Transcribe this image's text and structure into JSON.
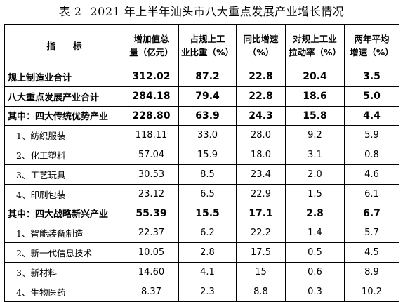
{
  "title": {
    "label": "表 2",
    "text": "2021 年上半年汕头市八大重点发展产业增长情况"
  },
  "table": {
    "headers": [
      {
        "line1": "指　　标",
        "line2": ""
      },
      {
        "line1": "增加值总",
        "line2": "量（亿元）"
      },
      {
        "line1": "占规上工",
        "line2": "业比重（%）"
      },
      {
        "line1": "同比增速",
        "line2": "（%）"
      },
      {
        "line1": "对规上工业",
        "line2": "拉动率（%）"
      },
      {
        "line1": "两年平均",
        "line2": "增速（%）"
      }
    ],
    "rows": [
      {
        "label": "规上制造业合计",
        "value_added": "312.02",
        "share": "87.2",
        "yoy_growth": "22.8",
        "pull_rate": "20.4",
        "two_year_avg": "3.5"
      },
      {
        "label": "八大重点发展产业合计",
        "value_added": "284.18",
        "share": "79.4",
        "yoy_growth": "22.8",
        "pull_rate": "18.6",
        "two_year_avg": "5.0"
      },
      {
        "label": "其中：四大传统优势产业",
        "value_added": "228.80",
        "share": "63.9",
        "yoy_growth": "24.3",
        "pull_rate": "15.8",
        "two_year_avg": "4.4"
      },
      {
        "label": "1、纺织服装",
        "value_added": "118.11",
        "share": "33.0",
        "yoy_growth": "28.0",
        "pull_rate": "9.2",
        "two_year_avg": "5.9"
      },
      {
        "label": "2、化工塑料",
        "value_added": "57.04",
        "share": "15.9",
        "yoy_growth": "18.0",
        "pull_rate": "3.1",
        "two_year_avg": "0.8"
      },
      {
        "label": "3、工艺玩具",
        "value_added": "30.53",
        "share": "8.5",
        "yoy_growth": "23.4",
        "pull_rate": "2.0",
        "two_year_avg": "4.6"
      },
      {
        "label": "4、印刷包装",
        "value_added": "23.12",
        "share": "6.5",
        "yoy_growth": "22.9",
        "pull_rate": "1.5",
        "two_year_avg": "6.1"
      },
      {
        "label": "其中：四大战略新兴产业",
        "value_added": "55.39",
        "share": "15.5",
        "yoy_growth": "17.1",
        "pull_rate": "2.8",
        "two_year_avg": "6.7"
      },
      {
        "label": "1、智能装备制造",
        "value_added": "22.37",
        "share": "6.2",
        "yoy_growth": "22.2",
        "pull_rate": "1.4",
        "two_year_avg": "5.7"
      },
      {
        "label": "2、新一代信息技术",
        "value_added": "10.05",
        "share": "2.8",
        "yoy_growth": "17.5",
        "pull_rate": "0.5",
        "two_year_avg": "4.5"
      },
      {
        "label": "3、新材料",
        "value_added": "14.60",
        "share": "4.1",
        "yoy_growth": "15",
        "pull_rate": "0.6",
        "two_year_avg": "8.9"
      },
      {
        "label": "4、生物医药",
        "value_added": "8.37",
        "share": "2.3",
        "yoy_growth": "8.8",
        "pull_rate": "0.3",
        "two_year_avg": "10.2"
      }
    ]
  }
}
